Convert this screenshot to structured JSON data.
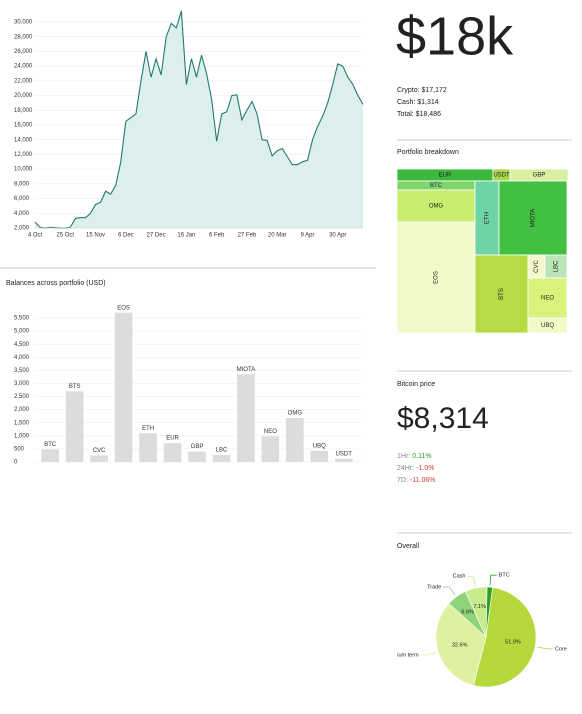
{
  "summary": {
    "headline": "$18k",
    "lines": [
      "Crypto: $17,172",
      "Cash: $1,314",
      "Total: $18,486"
    ]
  },
  "bitcoin": {
    "title": "Bitcoin price",
    "price": "$8,314",
    "changes": [
      {
        "label": "1Hr:",
        "value": 0.11,
        "value_label": "0.11%"
      },
      {
        "label": "24Hr:",
        "value": -1.0,
        "value_label": "-1.0%"
      },
      {
        "label": "7D:",
        "value": -11.06,
        "value_label": "-11.06%"
      }
    ]
  },
  "chart_data": [
    {
      "type": "area",
      "color": "#237a72",
      "fill": "#dcefed",
      "categories": [
        "4 Oct",
        null,
        null,
        null,
        null,
        null,
        "25 Oct",
        null,
        null,
        null,
        null,
        null,
        "15 Nov",
        null,
        null,
        null,
        null,
        null,
        "6 Dec",
        null,
        null,
        null,
        null,
        null,
        "27 Dec",
        null,
        null,
        null,
        null,
        null,
        "16 Jan",
        null,
        null,
        null,
        null,
        null,
        "6 Feb",
        null,
        null,
        null,
        null,
        null,
        "27 Feb",
        null,
        null,
        null,
        null,
        null,
        "20 Mar",
        null,
        null,
        null,
        null,
        null,
        "9 Apr",
        null,
        null,
        null,
        null,
        null,
        "30 Apr",
        null,
        null,
        null,
        null,
        null
      ],
      "values": [
        2800,
        2100,
        2000,
        2100,
        2050,
        2000,
        2000,
        2100,
        3300,
        3400,
        3400,
        4000,
        5200,
        5500,
        7000,
        6600,
        7800,
        11000,
        16500,
        17000,
        17500,
        22000,
        26000,
        22500,
        25000,
        22800,
        28000,
        29800,
        29200,
        31500,
        21500,
        25000,
        22500,
        25500,
        23000,
        19500,
        13800,
        17500,
        17800,
        20000,
        20100,
        16700,
        18000,
        19200,
        17500,
        14000,
        13900,
        11800,
        12500,
        12800,
        11700,
        10600,
        10600,
        11000,
        11200,
        14000,
        15800,
        17200,
        19000,
        21500,
        24300,
        24000,
        22500,
        21500,
        20000,
        18800
      ],
      "ylim": [
        2000,
        30000
      ],
      "yticks": [
        {
          "value": 2000,
          "label": "2,000"
        },
        {
          "value": 4000,
          "label": "4,000"
        },
        {
          "value": 6000,
          "label": "6,000"
        },
        {
          "value": 8000,
          "label": "8,000"
        },
        {
          "value": 10000,
          "label": "10,000"
        },
        {
          "value": 12000,
          "label": "12,000"
        },
        {
          "value": 14000,
          "label": "14,000"
        },
        {
          "value": 16000,
          "label": "16,000"
        },
        {
          "value": 18000,
          "label": "18,000"
        },
        {
          "value": 20000,
          "label": "20,000"
        },
        {
          "value": 22000,
          "label": "22,000"
        },
        {
          "value": 24000,
          "label": "24,000"
        },
        {
          "value": 26000,
          "label": "26,000"
        },
        {
          "value": 28000,
          "label": "28,000"
        },
        {
          "value": 30000,
          "label": "30,000"
        }
      ],
      "grid": true
    },
    {
      "type": "bar",
      "title": "Balances across portfolio (USD)",
      "color": "#dcdcdc",
      "categories": [
        "BTC",
        "BTS",
        "CVC",
        "EOS",
        "ETH",
        "EUR",
        "GBP",
        "LBC",
        "MIOTA",
        "NEO",
        "OMG",
        "UBQ",
        "USDT"
      ],
      "values": [
        480,
        2700,
        250,
        5700,
        1100,
        720,
        400,
        270,
        3350,
        980,
        1680,
        430,
        120
      ],
      "ylim": [
        0,
        5500
      ],
      "yticks": [
        0,
        500,
        {
          "value": 1000,
          "label": "1,000"
        },
        {
          "value": 1500,
          "label": "1,500"
        },
        {
          "value": 2000,
          "label": "2,000"
        },
        {
          "value": 2500,
          "label": "2,500"
        },
        {
          "value": 3000,
          "label": "3,000"
        },
        {
          "value": 3500,
          "label": "3,500"
        },
        {
          "value": 4000,
          "label": "4,000"
        },
        {
          "value": 4500,
          "label": "4,500"
        },
        {
          "value": 5000,
          "label": "5,000"
        },
        {
          "value": 5500,
          "label": "5,500"
        }
      ],
      "grid": true
    },
    {
      "type": "treemap",
      "title": "Portfolio breakdown",
      "categories": [
        "EUR",
        "USDT",
        "GBP",
        "BTC",
        "OMG",
        "EOS",
        "ETH",
        "MIOTA",
        "BTS",
        "CVC",
        "LBC",
        "NEO",
        "UBQ"
      ],
      "colors": [
        "#3cb83c",
        "#a6d84a",
        "#d9f0a3",
        "#7dd66a",
        "#c8ec6c",
        "#f2fbc8",
        "#6fd3a6",
        "#41c041",
        "#b5dc45",
        "#f4f8cc",
        "#b8e6b8",
        "#daf27a",
        "#f2fbc8"
      ]
    },
    {
      "type": "pie",
      "title": "Overall",
      "categories": [
        "BTC",
        "Core",
        "Medium term",
        "Trade",
        "Cash"
      ],
      "values": [
        1.8,
        51.9,
        32.6,
        6.6,
        7.1
      ],
      "value_labels": [
        null,
        "51.9%",
        "32.6%",
        "6.6%",
        "7.1%"
      ],
      "colors": [
        "#2aa02a",
        "#b5d93c",
        "#dff0a0",
        "#8fd47a",
        "#c8ec8c"
      ]
    }
  ]
}
